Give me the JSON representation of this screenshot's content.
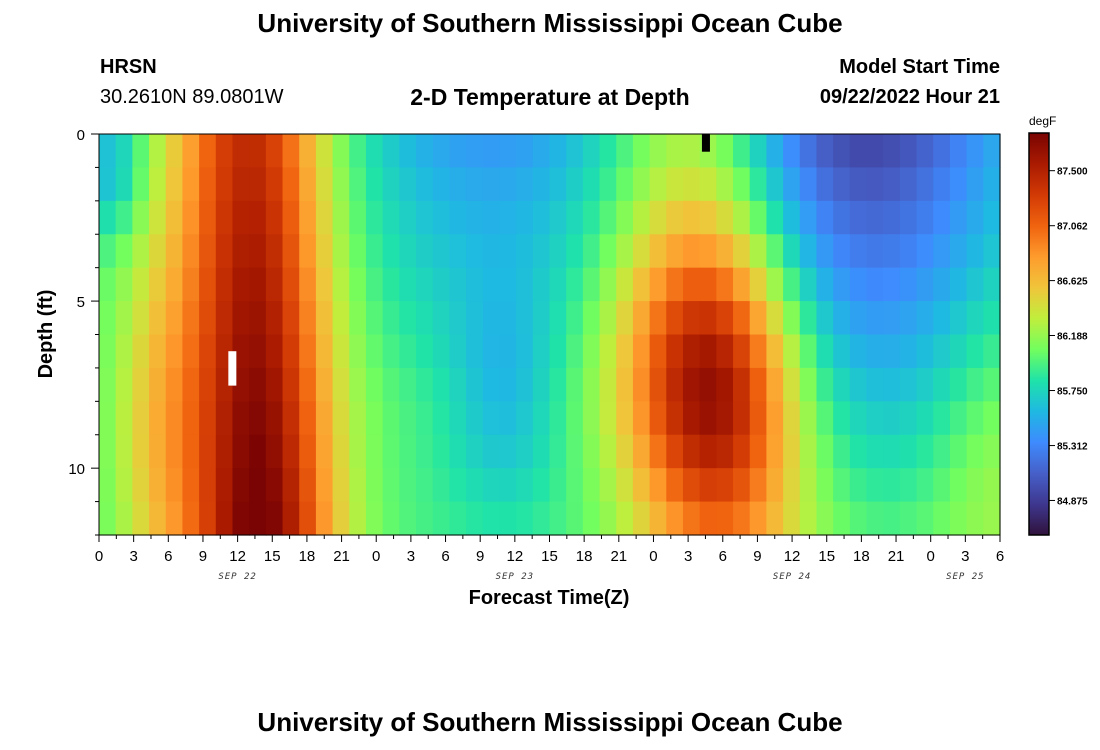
{
  "header": {
    "title": "University of Southern Mississippi Ocean Cube",
    "station": "HRSN",
    "coords": "30.2610N  89.0801W",
    "plot_title": "2-D Temperature at Depth",
    "model_start_label": "Model Start Time",
    "model_start_value": "09/22/2022 Hour 21"
  },
  "footer": {
    "title": "University of Southern Mississippi Ocean Cube"
  },
  "chart_data": {
    "type": "heatmap",
    "title": "2-D Temperature at Depth",
    "xlabel": "Forecast Time(Z)",
    "ylabel": "Depth (ft)",
    "x_hours_range": [
      0,
      78
    ],
    "x_ticks": [
      "0",
      "3",
      "6",
      "9",
      "12",
      "15",
      "18",
      "21",
      "0",
      "3",
      "6",
      "9",
      "12",
      "15",
      "18",
      "21",
      "0",
      "3",
      "6",
      "9",
      "12",
      "15",
      "18",
      "21",
      "0",
      "3",
      "6"
    ],
    "date_labels": [
      "SEP 22",
      "SEP 23",
      "SEP 24",
      "SEP 25"
    ],
    "date_label_hours": [
      12,
      36,
      60,
      75
    ],
    "y_range": [
      0,
      12
    ],
    "y_ticks": [
      "0",
      "5",
      "10"
    ],
    "y_tick_values": [
      0,
      5,
      10
    ],
    "colorbar": {
      "unit": "degF",
      "labels": [
        "87.500",
        "87.062",
        "86.625",
        "86.188",
        "85.750",
        "85.312",
        "84.875"
      ],
      "values": [
        87.5,
        87.062,
        86.625,
        86.188,
        85.75,
        85.312,
        84.875
      ],
      "min": 84.6,
      "max": 87.8
    },
    "colormap": [
      "#30123b",
      "#3e378f",
      "#4660c9",
      "#3e8bfe",
      "#1fb9e2",
      "#1fe3a8",
      "#72fe5e",
      "#c0ee3d",
      "#f0c53a",
      "#fe9b2d",
      "#f0630f",
      "#d23a05",
      "#a91a01",
      "#7a0403"
    ],
    "grid": {
      "nx": 54,
      "ny": 12,
      "description": "Temperature (degF) field: warm pulses near hours 12 and 53, cool near surface around hour 66"
    },
    "markers": [
      {
        "name": "white-marker",
        "hour": 11.5,
        "depth_from": 6.5,
        "depth_to": 7.5,
        "color": "#ffffff"
      },
      {
        "name": "black-marker",
        "hour": 52.5,
        "depth_from": 0.0,
        "depth_to": 0.5,
        "color": "#000000"
      }
    ]
  }
}
